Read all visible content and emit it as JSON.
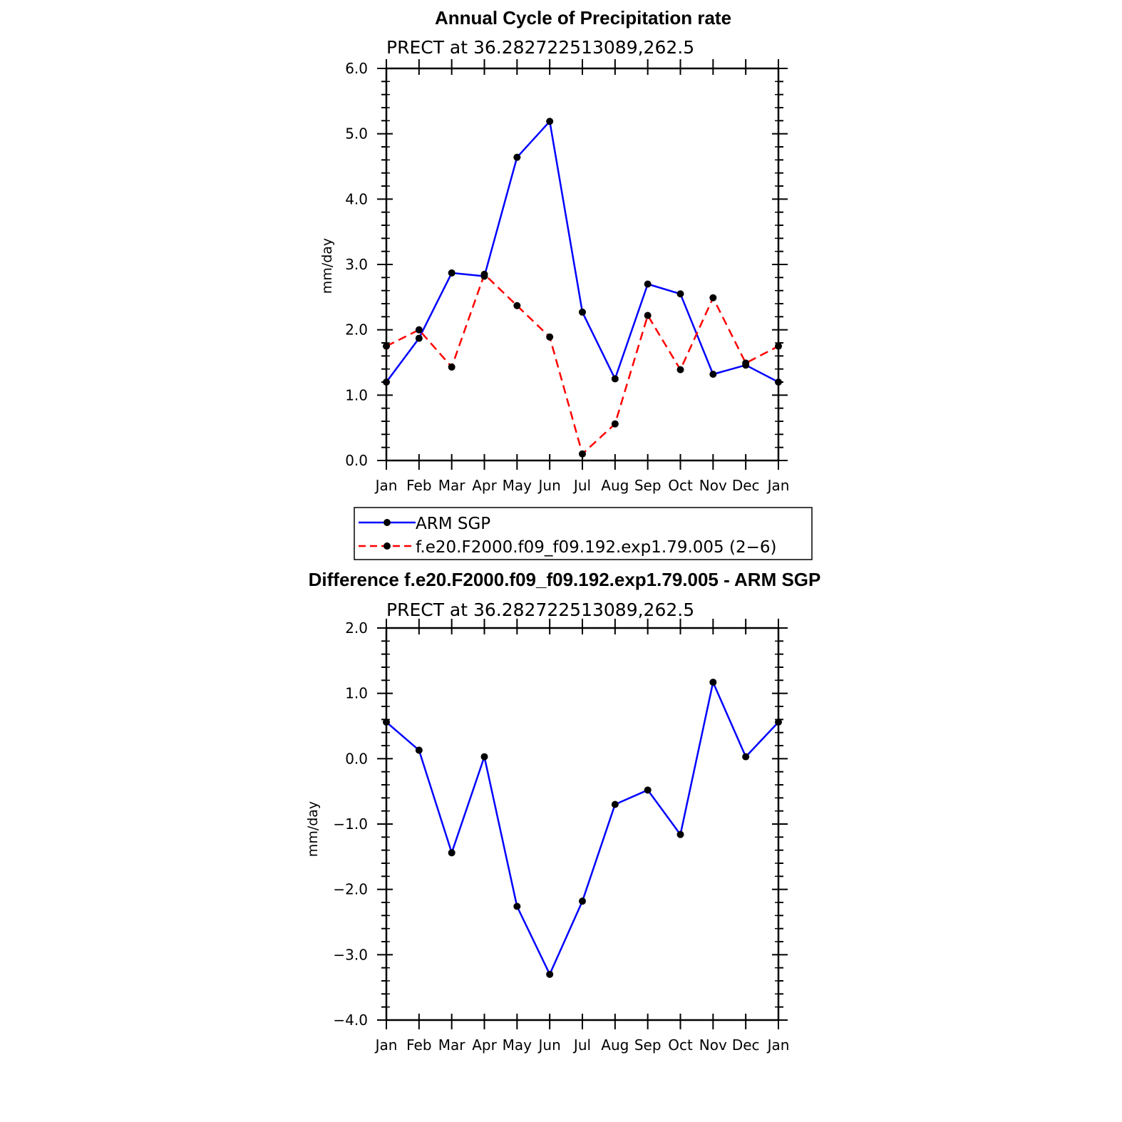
{
  "chart_data": [
    {
      "type": "line",
      "title": "Annual Cycle of Precipitation rate",
      "subtitle": "PRECT at 36.282722513089,262.5",
      "ylabel": "mm/day",
      "xlabel": "",
      "categories": [
        "Jan",
        "Feb",
        "Mar",
        "Apr",
        "May",
        "Jun",
        "Jul",
        "Aug",
        "Sep",
        "Oct",
        "Nov",
        "Dec",
        "Jan"
      ],
      "ylim": [
        0.0,
        6.0
      ],
      "yticks": [
        "0.0",
        "1.0",
        "2.0",
        "3.0",
        "4.0",
        "5.0",
        "6.0"
      ],
      "series": [
        {
          "name": "ARM SGP",
          "color": "#0000ff",
          "dash": "solid",
          "values": [
            1.2,
            1.87,
            2.87,
            2.82,
            4.64,
            5.19,
            2.27,
            1.25,
            2.7,
            2.55,
            1.32,
            1.46,
            1.2
          ]
        },
        {
          "name": "f.e20.F2000.f09_f09.192.exp1.79.005 (2−6)",
          "color": "#ff0000",
          "dash": "dashed",
          "values": [
            1.75,
            2.0,
            1.43,
            2.85,
            2.37,
            1.89,
            0.1,
            0.56,
            2.22,
            1.39,
            2.49,
            1.49,
            1.75
          ]
        }
      ],
      "legend": "below"
    },
    {
      "type": "line",
      "title": "Difference f.e20.F2000.f09_f09.192.exp1.79.005 - ARM SGP",
      "subtitle": "PRECT at 36.282722513089,262.5",
      "ylabel": "mm/day",
      "xlabel": "",
      "categories": [
        "Jan",
        "Feb",
        "Mar",
        "Apr",
        "May",
        "Jun",
        "Jul",
        "Aug",
        "Sep",
        "Oct",
        "Nov",
        "Dec",
        "Jan"
      ],
      "ylim": [
        -4.0,
        2.0
      ],
      "yticks": [
        "−4.0",
        "−3.0",
        "−2.0",
        "−1.0",
        "0.0",
        "1.0",
        "2.0"
      ],
      "series": [
        {
          "color": "#0000ff",
          "dash": "solid",
          "values": [
            0.56,
            0.13,
            -1.44,
            0.03,
            -2.26,
            -3.3,
            -2.18,
            -0.7,
            -0.48,
            -1.16,
            1.17,
            0.03,
            0.56
          ]
        }
      ]
    }
  ]
}
